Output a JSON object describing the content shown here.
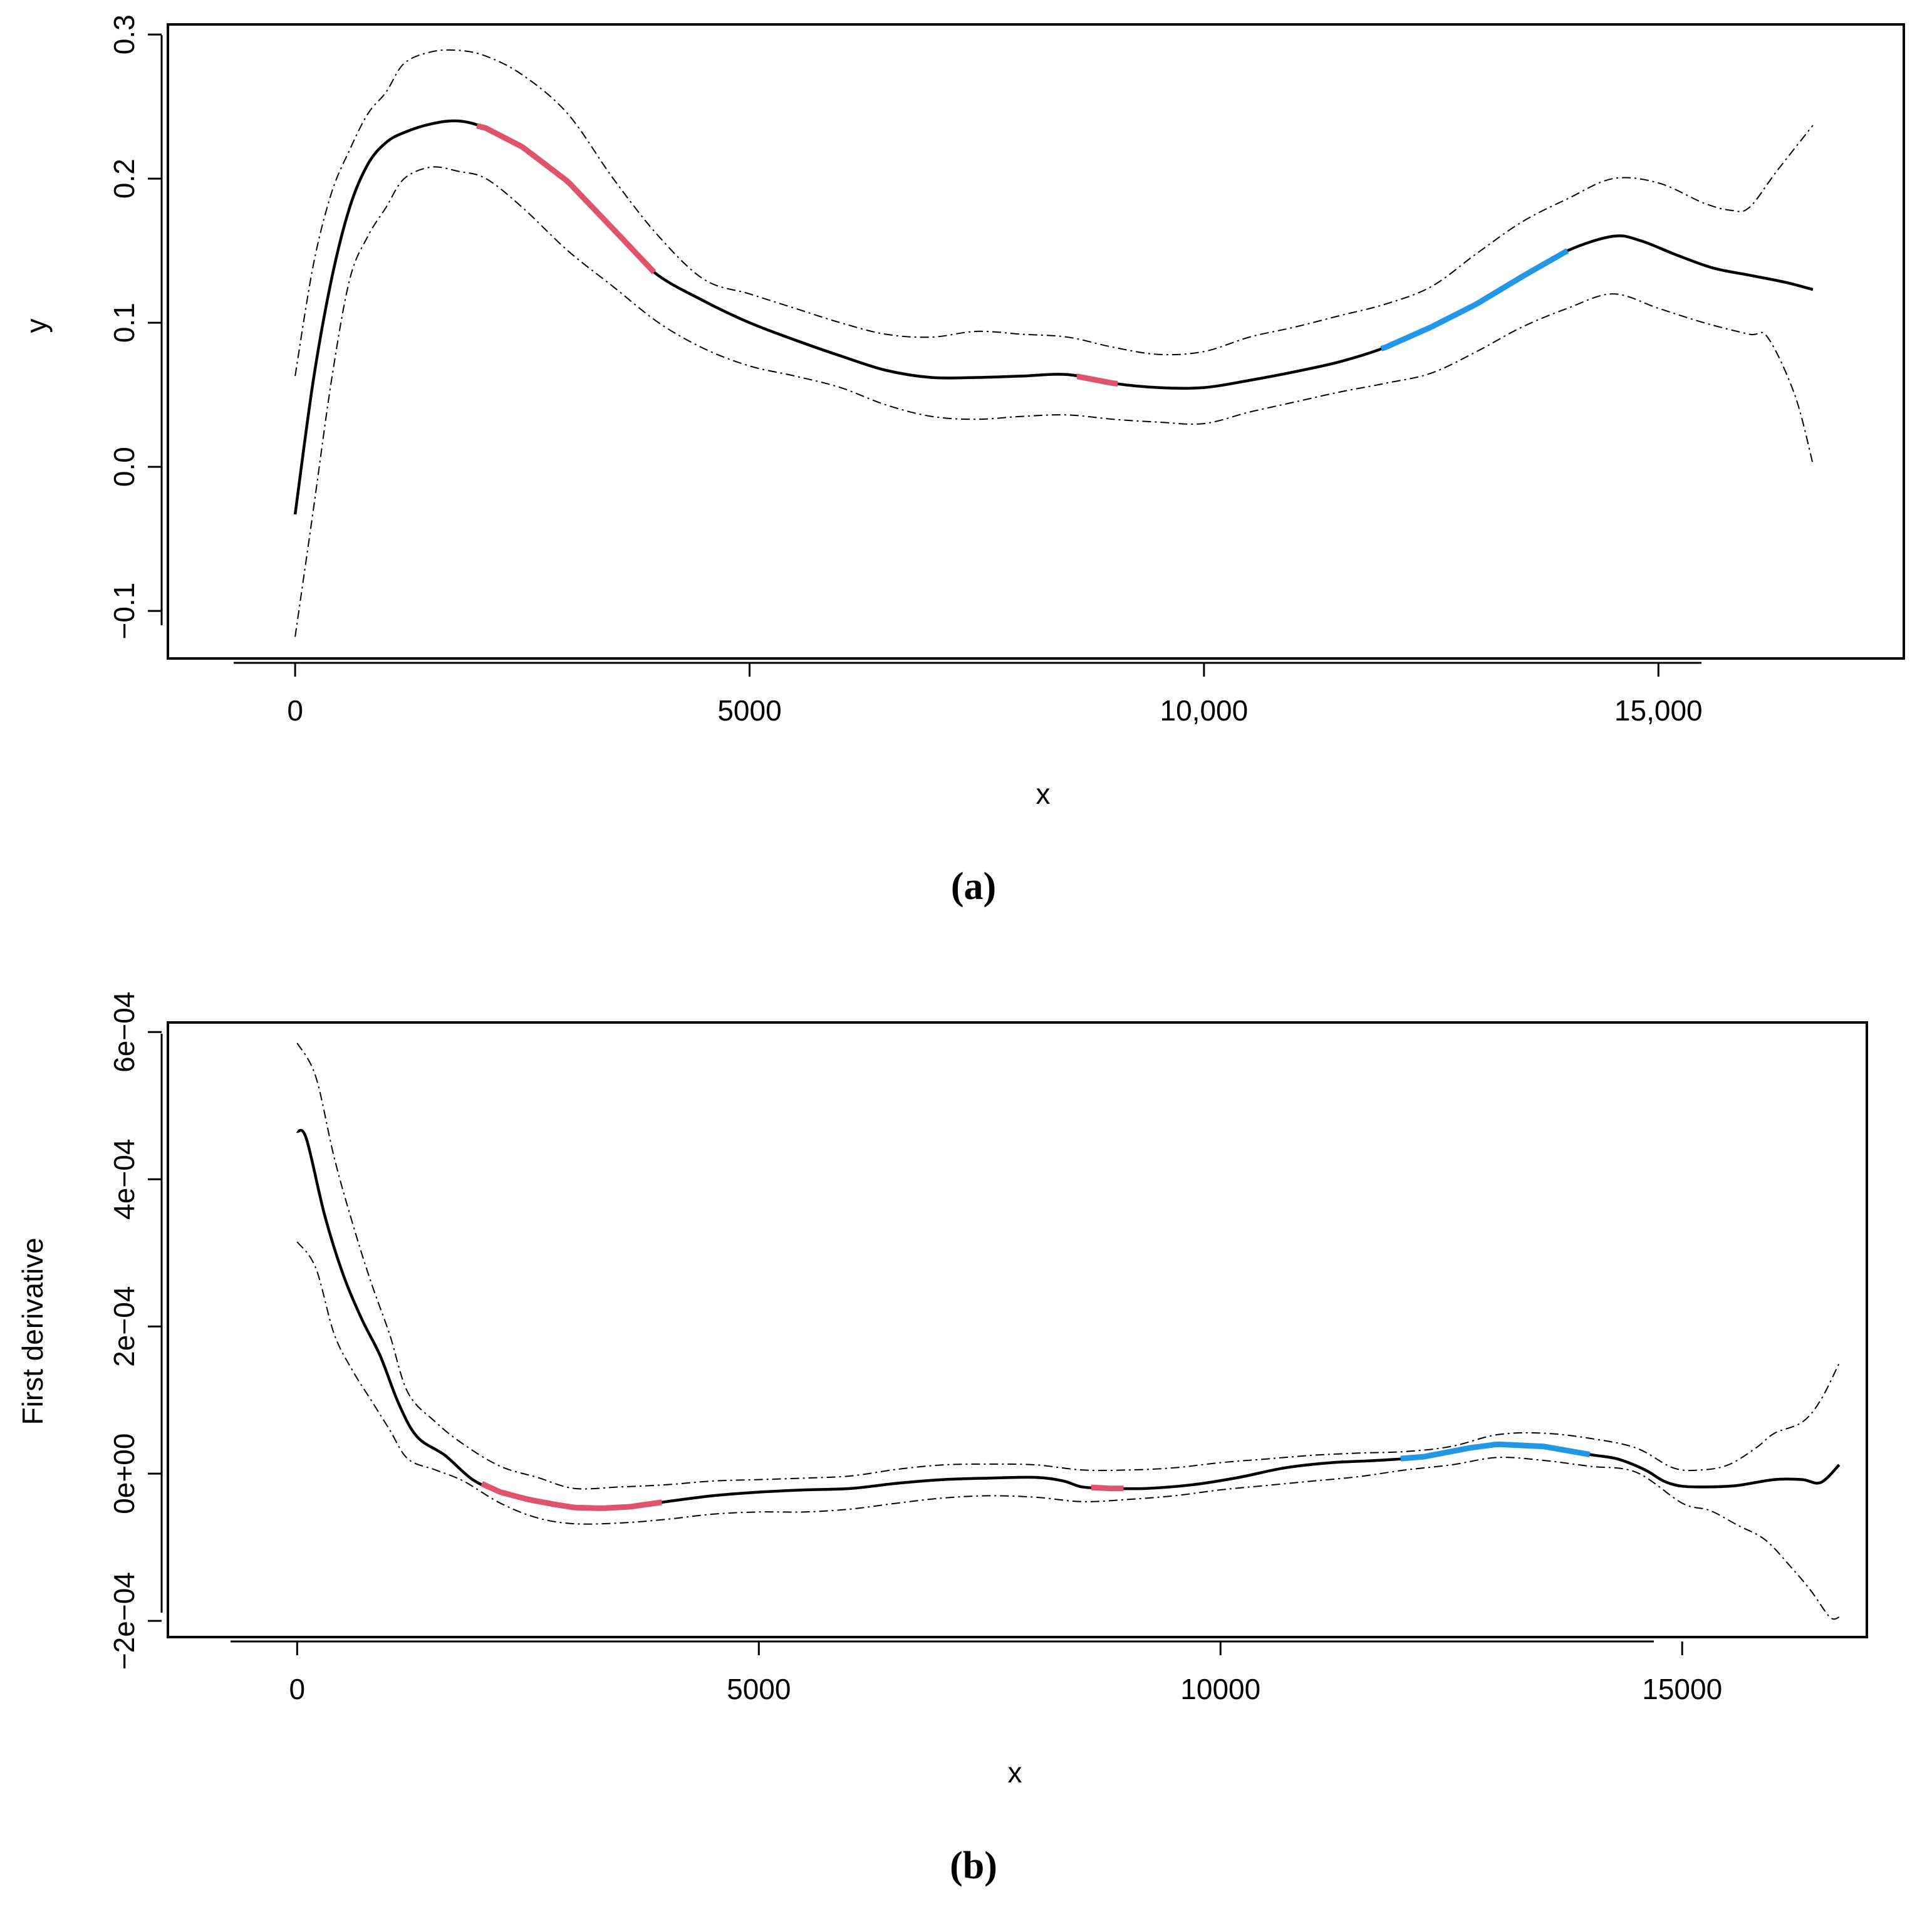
{
  "chart_data": [
    {
      "id": "a",
      "type": "line",
      "caption": "(a)",
      "xlabel": "x",
      "ylabel": "y",
      "xlim": [
        -1400,
        17700
      ],
      "ylim": [
        -0.133,
        0.307
      ],
      "xticks": [
        0,
        5000,
        10000,
        15000
      ],
      "xtick_labels": [
        "0",
        "5000",
        "10,000",
        "15,000"
      ],
      "yticks": [
        -0.1,
        0.0,
        0.1,
        0.2,
        0.3
      ],
      "ytick_labels": [
        "−0.1",
        "0.0",
        "0.1",
        "0.2",
        "0.3"
      ],
      "series": [
        {
          "name": "fit",
          "style": "solid",
          "x": [
            0,
            200,
            400,
            600,
            800,
            1000,
            1200,
            1500,
            1800,
            2100,
            2500,
            3000,
            3500,
            3950,
            4500,
            5000,
            5500,
            6000,
            6500,
            7000,
            7500,
            8000,
            8500,
            9000,
            9500,
            10000,
            10500,
            11000,
            11500,
            12000,
            12500,
            13000,
            13500,
            14000,
            14500,
            14800,
            15200,
            15600,
            16000,
            16400,
            16700
          ],
          "y": [
            -0.033,
            0.06,
            0.13,
            0.18,
            0.21,
            0.225,
            0.232,
            0.238,
            0.24,
            0.235,
            0.222,
            0.198,
            0.165,
            0.135,
            0.115,
            0.1,
            0.088,
            0.077,
            0.067,
            0.062,
            0.062,
            0.063,
            0.064,
            0.058,
            0.055,
            0.055,
            0.06,
            0.066,
            0.073,
            0.083,
            0.097,
            0.113,
            0.132,
            0.15,
            0.16,
            0.157,
            0.147,
            0.138,
            0.133,
            0.128,
            0.123
          ]
        },
        {
          "name": "upper band",
          "style": "dashdot",
          "x": [
            0,
            200,
            400,
            600,
            800,
            1000,
            1200,
            1500,
            1800,
            2100,
            2500,
            3000,
            3500,
            4000,
            4500,
            5000,
            5500,
            6000,
            6500,
            7000,
            7500,
            8000,
            8500,
            9000,
            9500,
            10000,
            10500,
            11000,
            11500,
            12000,
            12500,
            13000,
            13500,
            14000,
            14500,
            15000,
            15500,
            15800,
            16000,
            16300,
            16700
          ],
          "y": [
            0.063,
            0.14,
            0.19,
            0.22,
            0.245,
            0.26,
            0.28,
            0.288,
            0.289,
            0.285,
            0.272,
            0.245,
            0.2,
            0.16,
            0.13,
            0.12,
            0.11,
            0.1,
            0.092,
            0.09,
            0.094,
            0.092,
            0.09,
            0.083,
            0.078,
            0.08,
            0.09,
            0.097,
            0.105,
            0.113,
            0.125,
            0.148,
            0.17,
            0.186,
            0.2,
            0.197,
            0.183,
            0.178,
            0.18,
            0.205,
            0.237
          ]
        },
        {
          "name": "lower band",
          "style": "dashdot",
          "x": [
            0,
            200,
            400,
            600,
            800,
            1000,
            1200,
            1500,
            1800,
            2100,
            2500,
            3000,
            3500,
            4000,
            4500,
            5000,
            5500,
            6000,
            6500,
            7000,
            7500,
            8000,
            8500,
            9000,
            9500,
            10000,
            10500,
            11000,
            11500,
            12000,
            12500,
            13000,
            13500,
            14000,
            14500,
            15000,
            15500,
            16000,
            16200,
            16500,
            16700
          ],
          "y": [
            -0.118,
            -0.03,
            0.06,
            0.13,
            0.16,
            0.18,
            0.2,
            0.208,
            0.205,
            0.2,
            0.18,
            0.15,
            0.125,
            0.1,
            0.082,
            0.07,
            0.063,
            0.055,
            0.043,
            0.035,
            0.033,
            0.035,
            0.036,
            0.033,
            0.031,
            0.03,
            0.038,
            0.045,
            0.052,
            0.058,
            0.065,
            0.08,
            0.097,
            0.11,
            0.12,
            0.11,
            0.1,
            0.092,
            0.09,
            0.05,
            0.002
          ]
        },
        {
          "name": "significant decrease",
          "color": "#DF536B",
          "style": "highlight",
          "segments": [
            {
              "x0": 2000,
              "x1": 3950
            },
            {
              "x0": 8600,
              "x1": 9050
            }
          ]
        },
        {
          "name": "significant increase",
          "color": "#2297E6",
          "style": "highlight",
          "segments": [
            {
              "x0": 11950,
              "x1": 14000
            }
          ]
        }
      ]
    },
    {
      "id": "b",
      "type": "line",
      "caption": "(b)",
      "xlabel": "x",
      "ylabel": "First derivative",
      "xlim": [
        -1400,
        17000
      ],
      "ylim": [
        -0.000222,
        0.000613
      ],
      "xticks": [
        0,
        5000,
        10000,
        15000
      ],
      "xtick_labels": [
        "0",
        "5000",
        "10000",
        "15000"
      ],
      "yticks": [
        -0.0002,
        0.0,
        0.0002,
        0.0004,
        0.0006
      ],
      "ytick_labels": [
        "−2e−04",
        "0e+00",
        "2e−04",
        "4e−04",
        "6e−04"
      ],
      "series": [
        {
          "name": "derivative",
          "style": "solid",
          "x": [
            0,
            100,
            300,
            500,
            700,
            900,
            1100,
            1300,
            1600,
            1900,
            2200,
            2500,
            2800,
            3000,
            3300,
            3600,
            4000,
            4500,
            5000,
            5500,
            6000,
            6500,
            7000,
            7500,
            8000,
            8300,
            8500,
            8800,
            9200,
            9700,
            10200,
            10700,
            11200,
            11700,
            12200,
            12700,
            13000,
            13500,
            14000,
            14300,
            14600,
            14800,
            15000,
            15300,
            15600,
            16000,
            16300,
            16500,
            16700
          ],
          "y": [
            0.000465,
            0.000455,
            0.00035,
            0.00027,
            0.00021,
            0.00016,
            9.5e-05,
            5e-05,
            2.5e-05,
            -8e-06,
            -2.5e-05,
            -3.5e-05,
            -4.2e-05,
            -4.6e-05,
            -4.7e-05,
            -4.5e-05,
            -3.8e-05,
            -3e-05,
            -2.5e-05,
            -2.2e-05,
            -2e-05,
            -1.3e-05,
            -8e-06,
            -6e-06,
            -5e-06,
            -1e-05,
            -1.8e-05,
            -2e-05,
            -2e-05,
            -1.5e-05,
            -5e-06,
            8e-06,
            1.5e-05,
            1.8e-05,
            2.3e-05,
            3.5e-05,
            4e-05,
            3.7e-05,
            2.6e-05,
            2e-05,
            5e-06,
            -1e-05,
            -1.7e-05,
            -1.8e-05,
            -1.6e-05,
            -8e-06,
            -8e-06,
            -1.2e-05,
            1.2e-05
          ]
        },
        {
          "name": "upper band",
          "style": "dashdot",
          "x": [
            0,
            200,
            400,
            600,
            800,
            1000,
            1200,
            1500,
            1800,
            2200,
            2600,
            3000,
            3500,
            4000,
            4500,
            5000,
            5500,
            6000,
            6500,
            7000,
            7500,
            8000,
            8500,
            9000,
            9500,
            10000,
            10500,
            11000,
            11500,
            12000,
            12500,
            13000,
            13500,
            14000,
            14500,
            14900,
            15200,
            15500,
            15800,
            16000,
            16300,
            16500,
            16700
          ],
          "y": [
            0.000585,
            0.00054,
            0.00043,
            0.00034,
            0.00026,
            0.00019,
            0.00011,
            7e-05,
            4e-05,
            1e-05,
            -5e-06,
            -2e-05,
            -1.8e-05,
            -1.5e-05,
            -1e-05,
            -8e-06,
            -6e-06,
            -3e-06,
            6e-06,
            1.2e-05,
            1.3e-05,
            1.2e-05,
            5e-06,
            5e-06,
            8e-06,
            1.5e-05,
            2e-05,
            2.5e-05,
            2.8e-05,
            3e-05,
            3.7e-05,
            5.3e-05,
            5.5e-05,
            4.8e-05,
            3.5e-05,
            8e-06,
            5e-06,
            1.2e-05,
            3.5e-05,
            5.5e-05,
            7e-05,
            0.0001,
            0.00015
          ]
        },
        {
          "name": "lower band",
          "style": "dashdot",
          "x": [
            0,
            200,
            400,
            600,
            800,
            1000,
            1200,
            1500,
            1800,
            2200,
            2600,
            3000,
            3500,
            4000,
            4500,
            5000,
            5500,
            6000,
            6500,
            7000,
            7500,
            8000,
            8500,
            9000,
            9500,
            10000,
            10500,
            11000,
            11500,
            12000,
            12500,
            13000,
            13500,
            14000,
            14500,
            15000,
            15300,
            15600,
            15900,
            16200,
            16400,
            16600,
            16700
          ],
          "y": [
            0.000315,
            0.00028,
            0.00019,
            0.00014,
            0.0001,
            6e-05,
            2e-05,
            5e-06,
            -1e-05,
            -4e-05,
            -6e-05,
            -6.8e-05,
            -6.7e-05,
            -6.2e-05,
            -5.5e-05,
            -5.2e-05,
            -5.2e-05,
            -4.8e-05,
            -4e-05,
            -3.3e-05,
            -3e-05,
            -3.2e-05,
            -3.8e-05,
            -3.5e-05,
            -3e-05,
            -2.2e-05,
            -1.6e-05,
            -1e-05,
            -4e-06,
            5e-06,
            1.2e-05,
            2.2e-05,
            1.8e-05,
            1e-05,
            2e-06,
            -4e-05,
            -5e-05,
            -7e-05,
            -9e-05,
            -0.00013,
            -0.00016,
            -0.000195,
            -0.000195
          ]
        },
        {
          "name": "significant decrease",
          "color": "#DF536B",
          "style": "highlight",
          "segments": [
            {
              "x0": 2000,
              "x1": 3950
            },
            {
              "x0": 8600,
              "x1": 8950
            }
          ]
        },
        {
          "name": "significant increase",
          "color": "#2297E6",
          "style": "highlight",
          "segments": [
            {
              "x0": 11950,
              "x1": 14000
            }
          ]
        }
      ]
    }
  ]
}
